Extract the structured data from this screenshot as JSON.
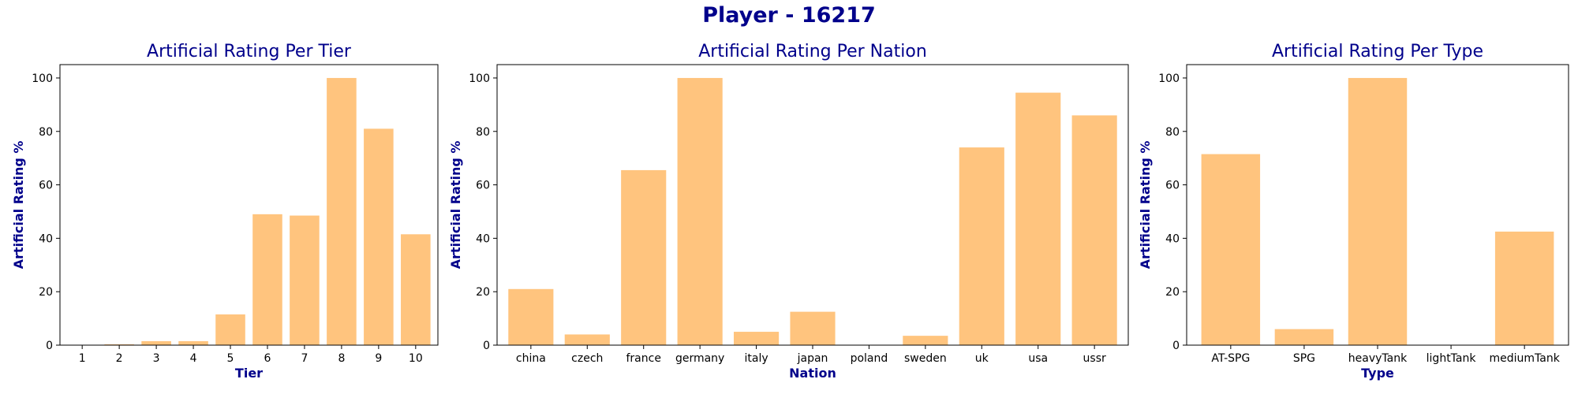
{
  "figure": {
    "suptitle": "Player - 16217"
  },
  "colors": {
    "bar": "#ffc47e",
    "title": "#00008b",
    "axis": "#000000"
  },
  "chart_data": [
    {
      "type": "bar",
      "title": "Artificial Rating Per Tier",
      "xlabel": "Tier",
      "ylabel": "Artificial Rating %",
      "ylim": [
        0,
        105
      ],
      "yticks": [
        0,
        20,
        40,
        60,
        80,
        100
      ],
      "grid": false,
      "categories": [
        "1",
        "2",
        "3",
        "4",
        "5",
        "6",
        "7",
        "8",
        "9",
        "10"
      ],
      "values": [
        0,
        0.3,
        1.5,
        1.5,
        11.5,
        49,
        48.5,
        100,
        81,
        41.5
      ]
    },
    {
      "type": "bar",
      "title": "Artificial Rating Per Nation",
      "xlabel": "Nation",
      "ylabel": "Artificial Rating %",
      "ylim": [
        0,
        105
      ],
      "yticks": [
        0,
        20,
        40,
        60,
        80,
        100
      ],
      "grid": false,
      "categories": [
        "china",
        "czech",
        "france",
        "germany",
        "italy",
        "japan",
        "poland",
        "sweden",
        "uk",
        "usa",
        "ussr"
      ],
      "values": [
        21,
        4,
        65.5,
        100,
        5,
        12.5,
        0,
        3.5,
        74,
        94.5,
        86
      ]
    },
    {
      "type": "bar",
      "title": "Artificial Rating Per Type",
      "xlabel": "Type",
      "ylabel": "Artificial Rating %",
      "ylim": [
        0,
        105
      ],
      "yticks": [
        0,
        20,
        40,
        60,
        80,
        100
      ],
      "grid": false,
      "categories": [
        "AT-SPG",
        "SPG",
        "heavyTank",
        "lightTank",
        "mediumTank"
      ],
      "values": [
        71.5,
        6,
        100,
        0,
        42.5
      ]
    }
  ]
}
